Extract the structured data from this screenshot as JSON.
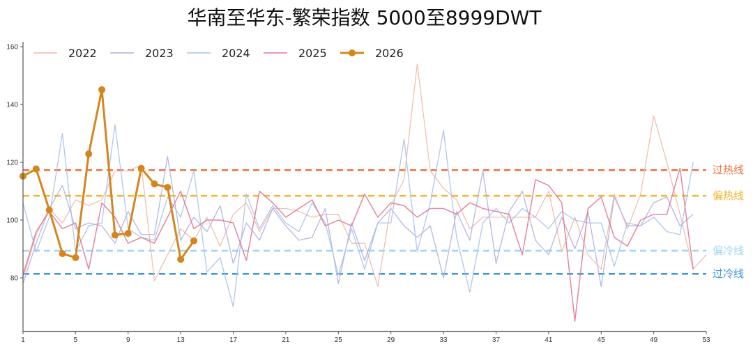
{
  "title": "华南至华东-繁荣指数 5000至8999DWT",
  "colors": {
    "2022": "#f0b8a8",
    "2023": "#aeaee0",
    "2024": "#a8c0ec",
    "2025": "#e07a92",
    "2026": "#d4861c",
    "overheat": "#f0703c",
    "warm": "#f4b42c",
    "cool": "#9ed4f4",
    "overcool": "#3c96e0"
  },
  "chart_data": {
    "type": "line",
    "title": "华南至华东-繁荣指数 5000至8999DWT",
    "xlabel": "",
    "ylabel": "",
    "xlim": [
      1,
      53
    ],
    "ylim": [
      62,
      161
    ],
    "x_ticks": [
      1,
      5,
      9,
      13,
      17,
      21,
      25,
      29,
      33,
      37,
      41,
      45,
      49,
      53
    ],
    "y_ticks": [
      80,
      100,
      120,
      140,
      160
    ],
    "grid": false,
    "legend_position": "top-left",
    "legend": [
      "2022",
      "2023",
      "2024",
      "2025",
      "2026"
    ],
    "series": [
      {
        "name": "2022",
        "x": [
          1,
          2,
          3,
          4,
          5,
          6,
          7,
          8,
          9,
          10,
          11,
          12,
          13,
          14,
          15,
          16,
          17,
          18,
          19,
          20,
          21,
          22,
          23,
          24,
          25,
          26,
          27,
          28,
          29,
          30,
          31,
          32,
          33,
          34,
          35,
          36,
          37,
          38,
          39,
          40,
          41,
          42,
          43,
          44,
          45,
          46,
          47,
          48,
          49,
          50,
          51,
          52,
          53
        ],
        "values": [
          80,
          95,
          104,
          99,
          107,
          105,
          107,
          117,
          117,
          119,
          79,
          88,
          97,
          93,
          101,
          91,
          102,
          106,
          96,
          104,
          104,
          103,
          101,
          102,
          102,
          92,
          92,
          77,
          105,
          114,
          154,
          117,
          111,
          107,
          97,
          101,
          101,
          101,
          101,
          101,
          110,
          89,
          101,
          88,
          83,
          109,
          97,
          109,
          136,
          120,
          102,
          83,
          88
        ]
      },
      {
        "name": "2023",
        "x": [
          1,
          2,
          3,
          4,
          5,
          6,
          7,
          8,
          9,
          10,
          11,
          12,
          13,
          14,
          15,
          16,
          17,
          18,
          19,
          20,
          21,
          22,
          23,
          24,
          25,
          26,
          27,
          28,
          29,
          30,
          31,
          32,
          33,
          34,
          35,
          36,
          37,
          38,
          39,
          40,
          41,
          42,
          43,
          44,
          45,
          46,
          47,
          48,
          49,
          50,
          51,
          52
        ],
        "values": [
          78,
          92,
          104,
          112,
          97,
          99,
          98,
          92,
          103,
          95,
          95,
          122,
          93,
          101,
          96,
          105,
          85,
          99,
          93,
          104,
          98,
          93,
          94,
          104,
          78,
          99,
          86,
          99,
          104,
          98,
          94,
          98,
          80,
          103,
          93,
          117,
          85,
          103,
          110,
          93,
          88,
          101,
          90,
          103,
          77,
          108,
          98,
          98,
          106,
          108,
          98,
          102
        ]
      },
      {
        "name": "2024",
        "x": [
          1,
          2,
          3,
          4,
          5,
          6,
          7,
          8,
          9,
          10,
          11,
          12,
          13,
          14,
          15,
          16,
          17,
          18,
          19,
          20,
          21,
          22,
          23,
          24,
          25,
          26,
          27,
          28,
          29,
          30,
          31,
          32,
          33,
          34,
          35,
          36,
          37,
          38,
          39,
          40,
          41,
          42,
          43,
          44,
          45,
          46,
          47,
          48,
          49,
          50,
          51,
          52
        ],
        "values": [
          106,
          89,
          101,
          130,
          89,
          98,
          99,
          133,
          97,
          94,
          93,
          108,
          101,
          117,
          82,
          87,
          70,
          109,
          97,
          105,
          99,
          96,
          106,
          99,
          81,
          97,
          83,
          99,
          99,
          128,
          89,
          106,
          131,
          94,
          75,
          99,
          104,
          99,
          104,
          101,
          97,
          103,
          100,
          99,
          99,
          84,
          99,
          98,
          101,
          96,
          95,
          120
        ]
      },
      {
        "name": "2025",
        "x": [
          1,
          2,
          3,
          4,
          5,
          6,
          7,
          8,
          9,
          10,
          11,
          12,
          13,
          14,
          15,
          16,
          17,
          18,
          19,
          20,
          21,
          22,
          23,
          24,
          25,
          26,
          27,
          28,
          29,
          30,
          31,
          32,
          33,
          34,
          35,
          36,
          37,
          38,
          39,
          40,
          41,
          42,
          43,
          44,
          45,
          46,
          47,
          48,
          49,
          50,
          51,
          52
        ],
        "values": [
          81,
          96,
          103,
          97,
          99,
          83,
          106,
          101,
          92,
          94,
          92,
          101,
          110,
          97,
          100,
          100,
          99,
          86,
          110,
          106,
          101,
          104,
          107,
          98,
          100,
          98,
          109,
          101,
          106,
          105,
          101,
          104,
          104,
          102,
          106,
          104,
          103,
          102,
          88,
          114,
          112,
          106,
          65,
          104,
          108,
          94,
          91,
          100,
          102,
          102,
          118,
          83
        ]
      },
      {
        "name": "2026",
        "x": [
          1,
          2,
          3,
          4,
          5,
          6,
          7,
          8,
          9,
          10,
          11,
          12,
          13,
          14
        ],
        "values": [
          115.2,
          117.7,
          103.5,
          88.4,
          87.0,
          122.9,
          145.1,
          94.8,
          95.4,
          117.9,
          112.5,
          111.3,
          86.4,
          92.8
        ]
      }
    ],
    "reference_lines": [
      {
        "label": "过热线",
        "value": 117.3,
        "color": "#f0703c"
      },
      {
        "label": "偏热线",
        "value": 108.4,
        "color": "#f4b42c"
      },
      {
        "label": "偏冷线",
        "value": 89.4,
        "color": "#9ed4f4"
      },
      {
        "label": "过冷线",
        "value": 81.4,
        "color": "#3c96e0"
      }
    ]
  }
}
